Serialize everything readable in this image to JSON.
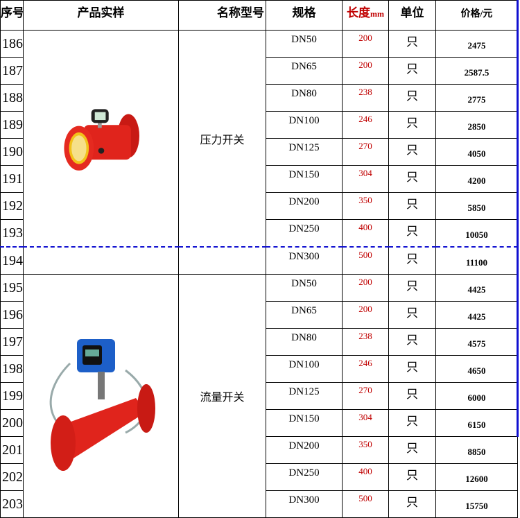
{
  "headers": {
    "index": "序号",
    "sample": "产品实样",
    "name": "名称型号",
    "spec": "规格",
    "length": "长度",
    "length_unit": "mm",
    "unit": "单位",
    "price": "价格/元"
  },
  "colors": {
    "length_text": "#c00000",
    "divider": "#1010d0",
    "product_red": "#e0241c"
  },
  "groups": [
    {
      "name": "压力开关",
      "image": "pressure-switch-pipe",
      "rows": [
        {
          "index": "186",
          "spec": "DN50",
          "length": "200",
          "unit": "只",
          "price": "2475"
        },
        {
          "index": "187",
          "spec": "DN65",
          "length": "200",
          "unit": "只",
          "price": "2587.5"
        },
        {
          "index": "188",
          "spec": "DN80",
          "length": "238",
          "unit": "只",
          "price": "2775"
        },
        {
          "index": "189",
          "spec": "DN100",
          "length": "246",
          "unit": "只",
          "price": "2850"
        },
        {
          "index": "190",
          "spec": "DN125",
          "length": "270",
          "unit": "只",
          "price": "4050"
        },
        {
          "index": "191",
          "spec": "DN150",
          "length": "304",
          "unit": "只",
          "price": "4200"
        },
        {
          "index": "192",
          "spec": "DN200",
          "length": "350",
          "unit": "只",
          "price": "5850"
        },
        {
          "index": "193",
          "spec": "DN250",
          "length": "400",
          "unit": "只",
          "price": "10050"
        }
      ]
    },
    {
      "name": "",
      "image": "",
      "rows": [
        {
          "index": "194",
          "spec": "DN300",
          "length": "500",
          "unit": "只",
          "price": "11100"
        }
      ]
    },
    {
      "name": "流量开关",
      "image": "flow-switch-pipe",
      "rows": [
        {
          "index": "195",
          "spec": "DN50",
          "length": "200",
          "unit": "只",
          "price": "4425"
        },
        {
          "index": "196",
          "spec": "DN65",
          "length": "200",
          "unit": "只",
          "price": "4425"
        },
        {
          "index": "197",
          "spec": "DN80",
          "length": "238",
          "unit": "只",
          "price": "4575"
        },
        {
          "index": "198",
          "spec": "DN100",
          "length": "246",
          "unit": "只",
          "price": "4650"
        },
        {
          "index": "199",
          "spec": "DN125",
          "length": "270",
          "unit": "只",
          "price": "6000"
        },
        {
          "index": "200",
          "spec": "DN150",
          "length": "304",
          "unit": "只",
          "price": "6150"
        },
        {
          "index": "201",
          "spec": "DN200",
          "length": "350",
          "unit": "只",
          "price": "8850"
        },
        {
          "index": "202",
          "spec": "DN250",
          "length": "400",
          "unit": "只",
          "price": "12600"
        },
        {
          "index": "203",
          "spec": "DN300",
          "length": "500",
          "unit": "只",
          "price": "15750"
        }
      ]
    }
  ]
}
